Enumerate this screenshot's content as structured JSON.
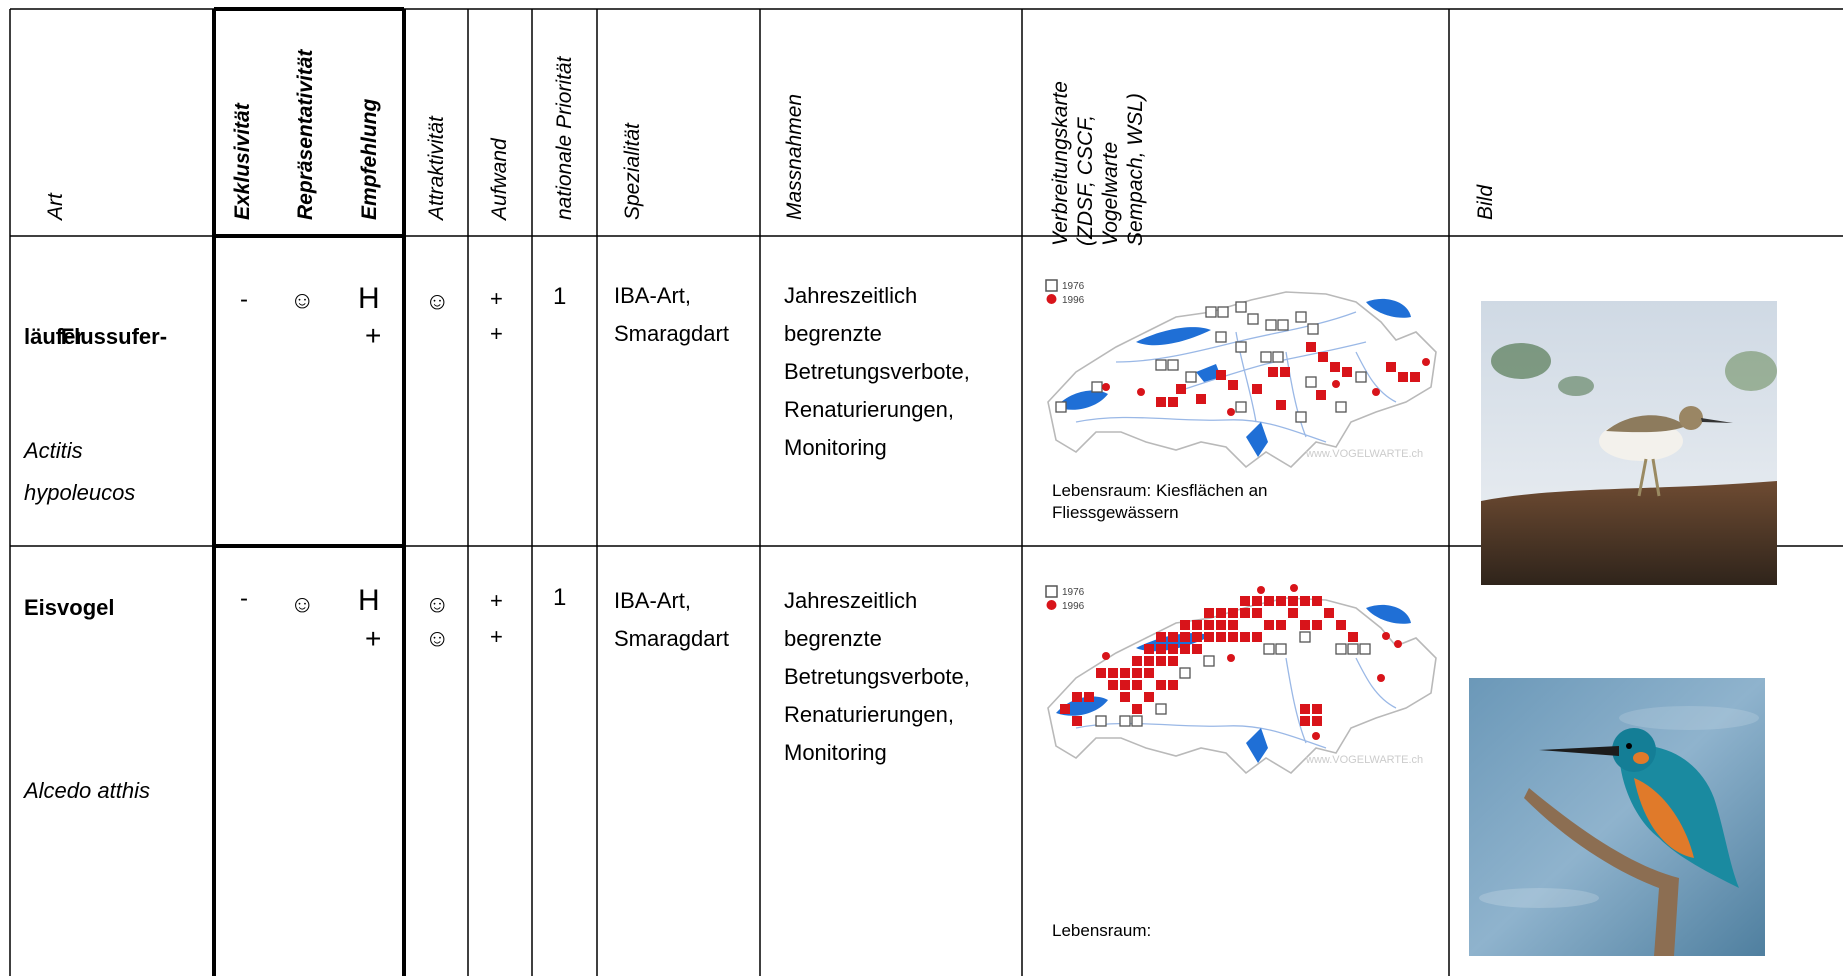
{
  "headers": {
    "art": "Art",
    "exklusivitaet": "Exklusivität",
    "repraesentativitaet": "Repräsentativität",
    "empfehlung": "Empfehlung",
    "attraktivitaet": "Attraktivität",
    "aufwand": "Aufwand",
    "nationale_prioritaet": "nationale Priorität",
    "spezialitaet": "Spezialität",
    "massnahmen": "Massnahmen",
    "verbreitungskarte": "Verbreitungskarte\n(ZDSF, CSCF,\nVogelwarte\nSempach, WSL)",
    "bild": "Bild"
  },
  "rows": [
    {
      "name_line1": "Flussufer-",
      "name_line2": "läufer",
      "latin_line1": "Actitis",
      "latin_line2": "hypoleucos",
      "exklusivitaet": "-",
      "repraesentativitaet": "☺",
      "empfehlung_1": "H",
      "empfehlung_2": "+",
      "attraktivitaet_1": "☺",
      "attraktivitaet_2": "",
      "aufwand_1": "+",
      "aufwand_2": "+",
      "prioritaet": "1",
      "spezialitaet": "IBA-Art,\nSmaragdart",
      "massnahmen": "Jahreszeitlich\nbegrenzte\nBetretungsverbote,\nRenaturierungen,\nMonitoring",
      "map_legend_1976": "1976",
      "map_legend_1996": "1996",
      "map_watermark": "www.VOGELWARTE.ch",
      "lebensraum": "Lebensraum: Kiesflächen an\nFliessgewässern",
      "image_alt": "common-sandpiper-photo"
    },
    {
      "name_line1": "Eisvogel",
      "name_line2": "",
      "latin_line1": "Alcedo atthis",
      "latin_line2": "",
      "exklusivitaet": "-",
      "repraesentativitaet": "☺",
      "empfehlung_1": "H",
      "empfehlung_2": "+",
      "attraktivitaet_1": "☺",
      "attraktivitaet_2": "☺",
      "aufwand_1": "+",
      "aufwand_2": "+",
      "prioritaet": "1",
      "spezialitaet": "IBA-Art,\nSmaragdart",
      "massnahmen": "Jahreszeitlich\nbegrenzte\nBetretungsverbote,\nRenaturierungen,\nMonitoring",
      "map_legend_1976": "1976",
      "map_legend_1996": "1996",
      "map_watermark": "www.VOGELWARTE.ch",
      "lebensraum": "Lebensraum:",
      "image_alt": "kingfisher-photo"
    }
  ],
  "colors": {
    "grid": "#000000",
    "lake": "#1f6fd6",
    "river": "#9ab8e6",
    "dot_red": "#d8141a",
    "border_grey": "#b9b9b9"
  }
}
